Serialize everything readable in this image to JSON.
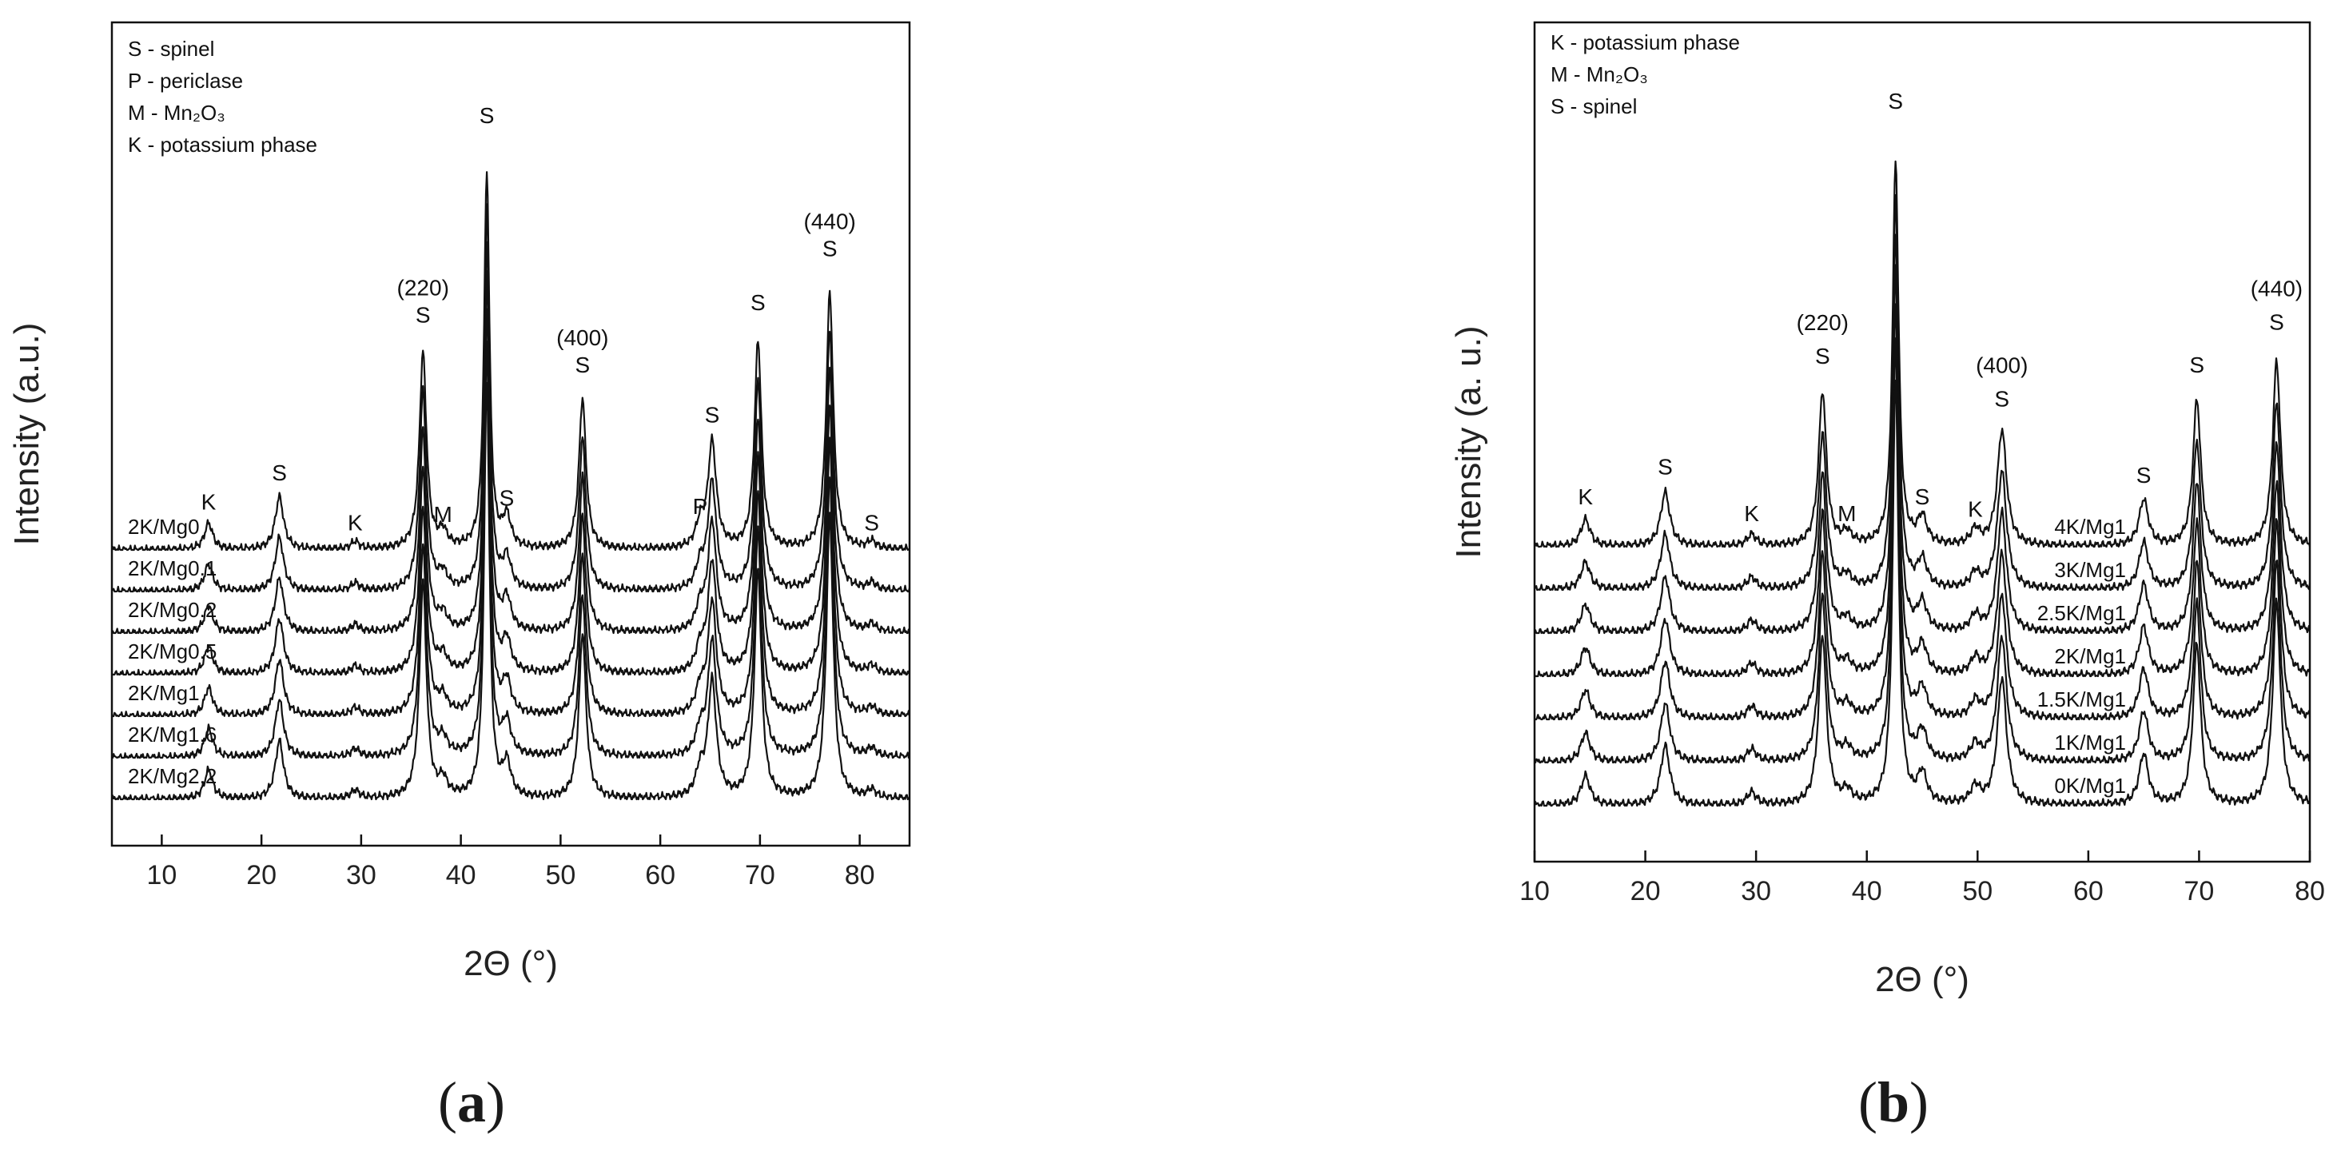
{
  "chart_data": [
    {
      "type": "line",
      "panel": "a",
      "caption_letter": "a",
      "xlabel": "2Θ (°)",
      "ylabel": "Intensity (a.u.)",
      "xlim": [
        5,
        85
      ],
      "x_ticks": [
        10,
        20,
        30,
        40,
        50,
        60,
        70,
        80
      ],
      "legend_placement": "top-left",
      "legend": [
        "S - spinel",
        "P - periclase",
        "M - Mn₂O₃",
        "K - potassium phase"
      ],
      "series": [
        {
          "name": "2K/Mg0",
          "order": 0
        },
        {
          "name": "2K/Mg0.1",
          "order": 1
        },
        {
          "name": "2K/Mg0.2",
          "order": 2
        },
        {
          "name": "2K/Mg0.5",
          "order": 3
        },
        {
          "name": "2K/Mg1",
          "order": 4
        },
        {
          "name": "2K/Mg1.6",
          "order": 5
        },
        {
          "name": "2K/Mg2.2",
          "order": 6
        }
      ],
      "peaks": [
        {
          "x": 14.7,
          "h": 0.07,
          "label": "K"
        },
        {
          "x": 21.8,
          "h": 0.14,
          "label": "S"
        },
        {
          "x": 29.4,
          "h": 0.02,
          "label": "K"
        },
        {
          "x": 36.2,
          "h": 0.52,
          "label": "S",
          "hkl": "(220)"
        },
        {
          "x": 38.2,
          "h": 0.04,
          "label": "M"
        },
        {
          "x": 42.6,
          "h": 1.0,
          "label": "S"
        },
        {
          "x": 44.6,
          "h": 0.08,
          "label": "S"
        },
        {
          "x": 52.2,
          "h": 0.4,
          "label": "S",
          "hkl": "(400)"
        },
        {
          "x": 64.0,
          "h": 0.06,
          "label": "P"
        },
        {
          "x": 65.2,
          "h": 0.28,
          "label": "S"
        },
        {
          "x": 69.8,
          "h": 0.55,
          "label": "S"
        },
        {
          "x": 77.0,
          "h": 0.68,
          "label": "S",
          "hkl": "(440)"
        },
        {
          "x": 81.2,
          "h": 0.02,
          "label": "S"
        }
      ]
    },
    {
      "type": "line",
      "panel": "b",
      "caption_letter": "b",
      "xlabel": "2Θ (°)",
      "ylabel": "Intensity (a. u.)",
      "xlim": [
        10,
        80
      ],
      "x_ticks": [
        10,
        20,
        30,
        40,
        50,
        60,
        70,
        80
      ],
      "legend_placement": "top-left",
      "legend": [
        "K - potassium phase",
        "M - Mn₂O₃",
        "S - spinel"
      ],
      "series": [
        {
          "name": "4K/Mg1",
          "order": 0
        },
        {
          "name": "3K/Mg1",
          "order": 1
        },
        {
          "name": "2.5K/Mg1",
          "order": 2
        },
        {
          "name": "2K/Mg1",
          "order": 3
        },
        {
          "name": "1.5K/Mg1",
          "order": 4
        },
        {
          "name": "1K/Mg1",
          "order": 5
        },
        {
          "name": "0K/Mg1",
          "order": 6
        }
      ],
      "peaks": [
        {
          "x": 14.6,
          "h": 0.07,
          "label": "K"
        },
        {
          "x": 21.8,
          "h": 0.14,
          "label": "S"
        },
        {
          "x": 29.6,
          "h": 0.03,
          "label": "K"
        },
        {
          "x": 36.0,
          "h": 0.4,
          "label": "S",
          "hkl": "(220)"
        },
        {
          "x": 38.2,
          "h": 0.03,
          "label": "M"
        },
        {
          "x": 42.6,
          "h": 1.0,
          "label": "S"
        },
        {
          "x": 45.0,
          "h": 0.07,
          "label": "S"
        },
        {
          "x": 49.8,
          "h": 0.04,
          "label": "K"
        },
        {
          "x": 52.2,
          "h": 0.3,
          "label": "S",
          "hkl": "(400)"
        },
        {
          "x": 65.0,
          "h": 0.12,
          "label": "S"
        },
        {
          "x": 69.8,
          "h": 0.38,
          "label": "S"
        },
        {
          "x": 77.0,
          "h": 0.48,
          "label": "S",
          "hkl": "(440)"
        }
      ]
    }
  ]
}
